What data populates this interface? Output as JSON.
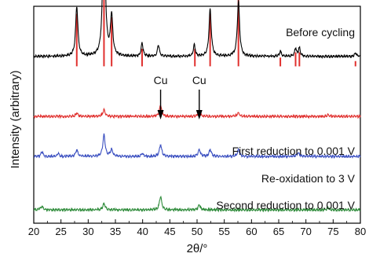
{
  "chart_data": {
    "type": "line",
    "xlabel": "2θ/°",
    "ylabel": "Intensity (arbitrary)",
    "xlim": [
      20,
      80
    ],
    "xticks": [
      20,
      25,
      30,
      35,
      40,
      45,
      50,
      55,
      60,
      65,
      70,
      75,
      80
    ],
    "y_ticks_shown": false,
    "legend": "inline labels",
    "series": [
      {
        "name": "Before cycling",
        "color": "#000000",
        "baseline": 100,
        "peaks": [
          {
            "x": 27.9,
            "h": 30,
            "w": 0.25
          },
          {
            "x": 32.9,
            "h": 96,
            "w": 0.25
          },
          {
            "x": 34.3,
            "h": 24,
            "w": 0.25
          },
          {
            "x": 39.9,
            "h": 8,
            "w": 0.2
          },
          {
            "x": 42.9,
            "h": 7,
            "w": 0.2
          },
          {
            "x": 49.5,
            "h": 7,
            "w": 0.2
          },
          {
            "x": 52.4,
            "h": 28,
            "w": 0.25
          },
          {
            "x": 57.6,
            "h": 33,
            "w": 0.25
          },
          {
            "x": 65.3,
            "h": 3,
            "w": 0.2
          },
          {
            "x": 68.1,
            "h": 5,
            "w": 0.2
          },
          {
            "x": 68.8,
            "h": 5,
            "w": 0.2
          },
          {
            "x": 79.1,
            "h": 2,
            "w": 0.2
          }
        ]
      },
      {
        "name": "First reduction to 0.001 V",
        "color": "#e0302e",
        "baseline": 64,
        "peaks": [
          {
            "x": 27.9,
            "h": 2,
            "w": 0.25
          },
          {
            "x": 32.9,
            "h": 4,
            "w": 0.25
          },
          {
            "x": 43.3,
            "h": 7,
            "w": 0.25
          },
          {
            "x": 50.4,
            "h": 3,
            "w": 0.25
          },
          {
            "x": 57.6,
            "h": 2,
            "w": 0.25
          },
          {
            "x": 74.1,
            "h": 1,
            "w": 0.25
          }
        ]
      },
      {
        "name": "Re-oxidation to 3 V",
        "color": "#3a4fc0",
        "baseline": 40,
        "peaks": [
          {
            "x": 21.5,
            "h": 3,
            "w": 0.2
          },
          {
            "x": 24.5,
            "h": 2,
            "w": 0.2
          },
          {
            "x": 27.9,
            "h": 4,
            "w": 0.25
          },
          {
            "x": 32.9,
            "h": 13,
            "w": 0.25
          },
          {
            "x": 34.3,
            "h": 4,
            "w": 0.25
          },
          {
            "x": 39.9,
            "h": 2,
            "w": 0.2
          },
          {
            "x": 43.3,
            "h": 7,
            "w": 0.25
          },
          {
            "x": 50.4,
            "h": 4,
            "w": 0.25
          },
          {
            "x": 52.4,
            "h": 4,
            "w": 0.25
          },
          {
            "x": 57.6,
            "h": 4,
            "w": 0.25
          },
          {
            "x": 68.6,
            "h": 2,
            "w": 0.3
          }
        ]
      },
      {
        "name": "Second reduction to 0.001 V",
        "color": "#2e8b3a",
        "baseline": 8,
        "peaks": [
          {
            "x": 21.5,
            "h": 2,
            "w": 0.25
          },
          {
            "x": 32.9,
            "h": 4,
            "w": 0.25
          },
          {
            "x": 43.3,
            "h": 8,
            "w": 0.25
          },
          {
            "x": 50.4,
            "h": 3,
            "w": 0.25
          },
          {
            "x": 74.1,
            "h": 1,
            "w": 0.25
          }
        ]
      }
    ],
    "reference_lines": {
      "color": "#e0302e",
      "positions": [
        27.9,
        32.9,
        34.3,
        39.9,
        49.6,
        52.4,
        57.6,
        65.3,
        68.1,
        68.8,
        79.1
      ],
      "relative_intensity": [
        30,
        100,
        28,
        10,
        10,
        30,
        40,
        5,
        8,
        8,
        3
      ]
    },
    "annotations": [
      {
        "text": "Cu",
        "x": 43.3
      },
      {
        "text": "Cu",
        "x": 50.4
      }
    ]
  }
}
